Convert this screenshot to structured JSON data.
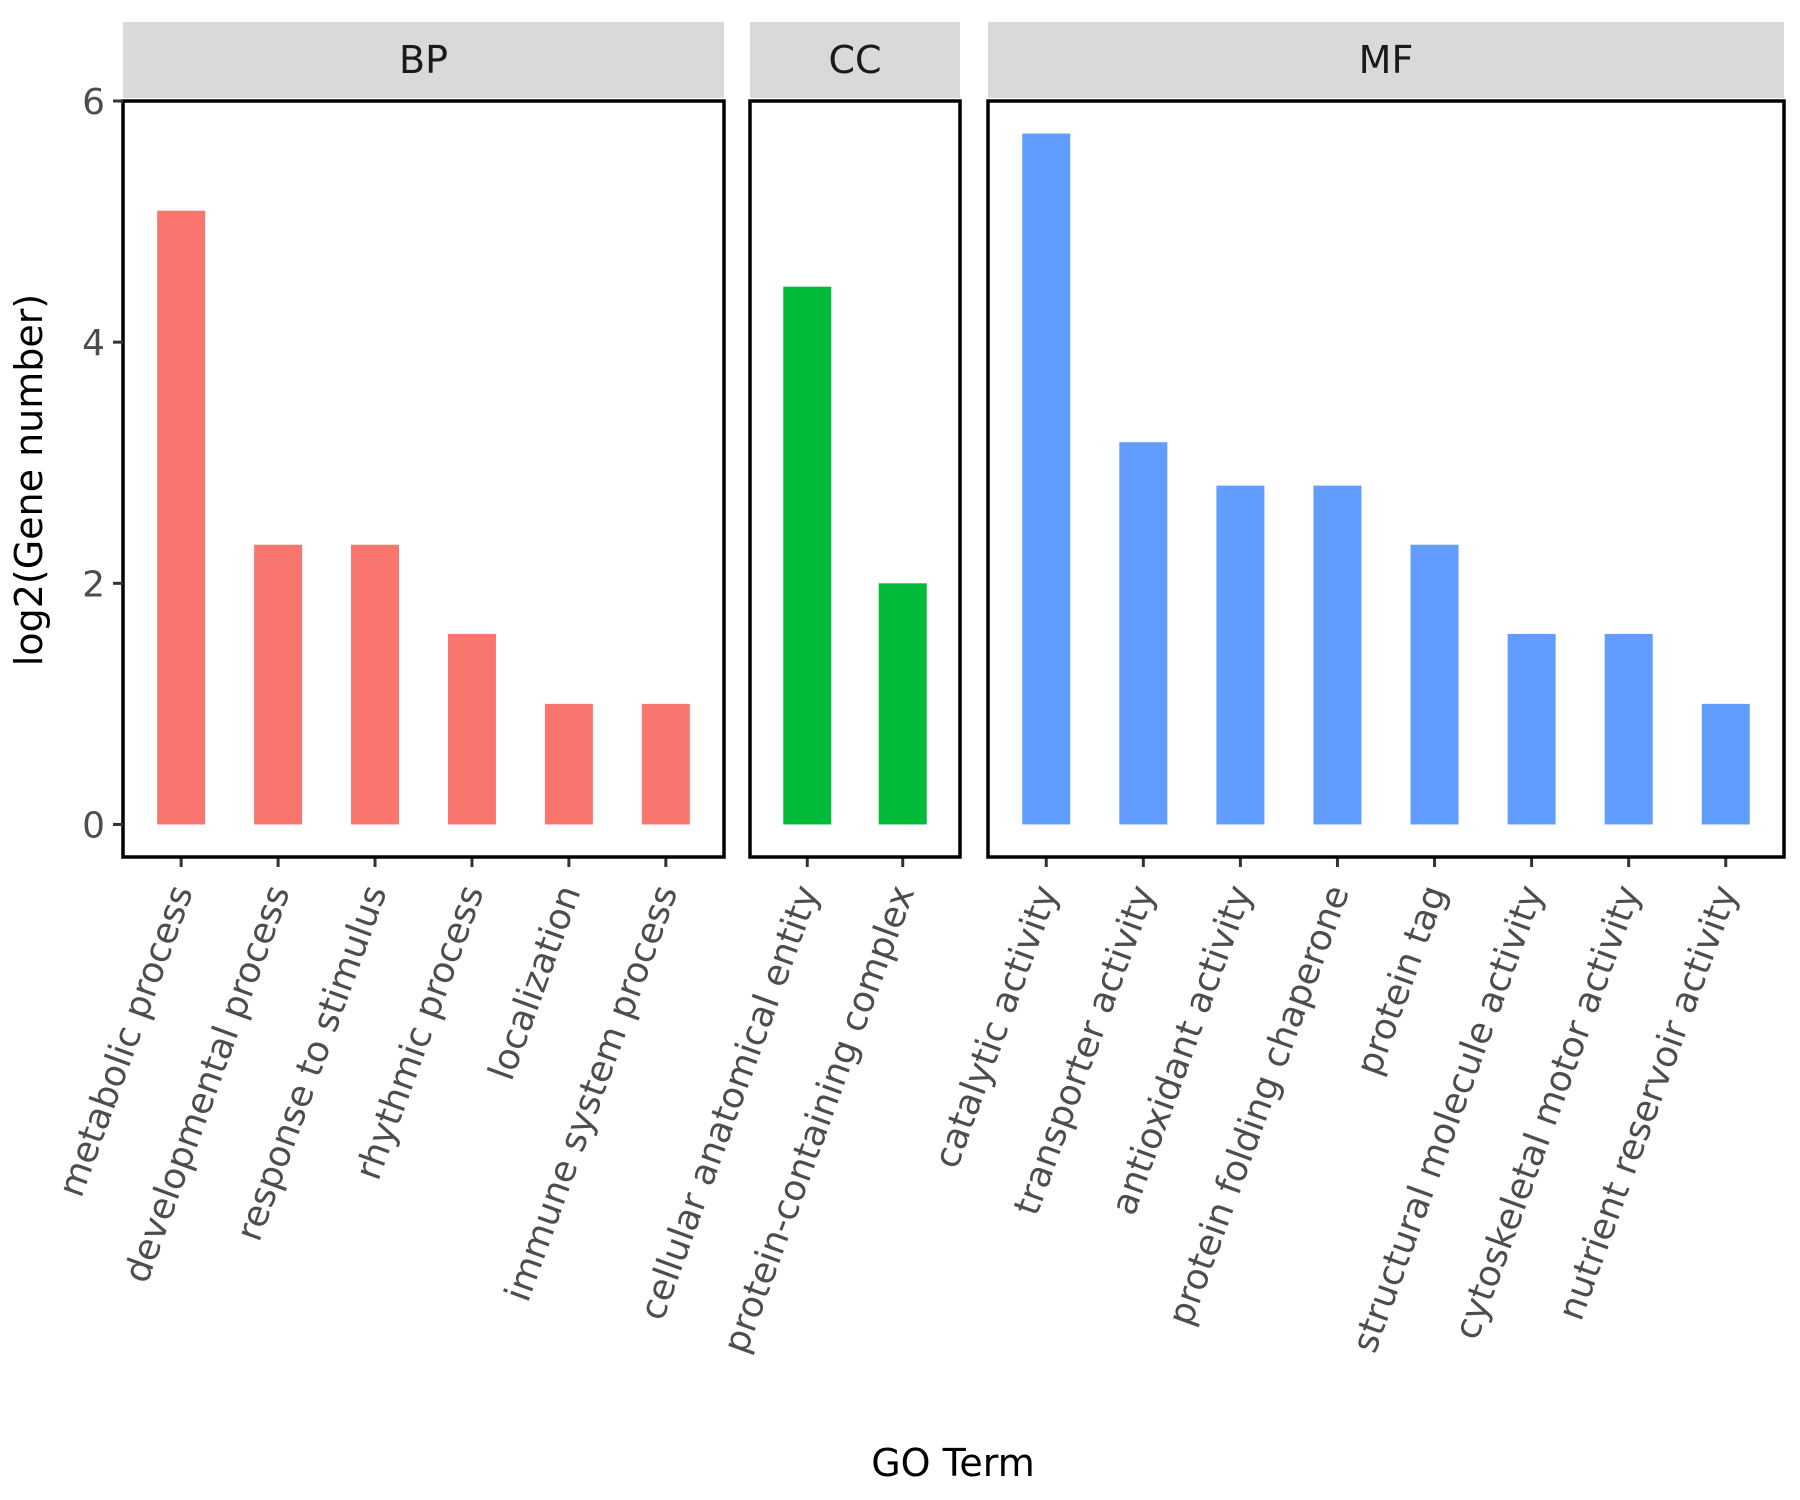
{
  "chart_data": {
    "type": "bar",
    "xlabel": "GO Term",
    "ylabel": "log2(Gene number)",
    "ylim": [
      -0.27,
      6
    ],
    "yticks": [
      0,
      2,
      4,
      6
    ],
    "facets": [
      {
        "name": "BP",
        "color": "#F8766D",
        "categories": [
          "metabolic process",
          "developmental process",
          "response to stimulus",
          "rhythmic process",
          "localization",
          "immune system process"
        ],
        "values": [
          5.09,
          2.32,
          2.32,
          1.58,
          1.0,
          1.0
        ]
      },
      {
        "name": "CC",
        "color": "#00BA38",
        "categories": [
          "cellular anatomical entity",
          "protein-containing complex"
        ],
        "values": [
          4.46,
          2.0
        ]
      },
      {
        "name": "MF",
        "color": "#619CFF",
        "categories": [
          "catalytic activity",
          "transporter activity",
          "antioxidant activity",
          "protein folding chaperone",
          "protein tag",
          "structural molecule activity",
          "cytoskeletal motor activity",
          "nutrient reservoir activity"
        ],
        "values": [
          5.73,
          3.17,
          2.81,
          2.81,
          2.32,
          1.58,
          1.58,
          1.0
        ]
      }
    ]
  }
}
